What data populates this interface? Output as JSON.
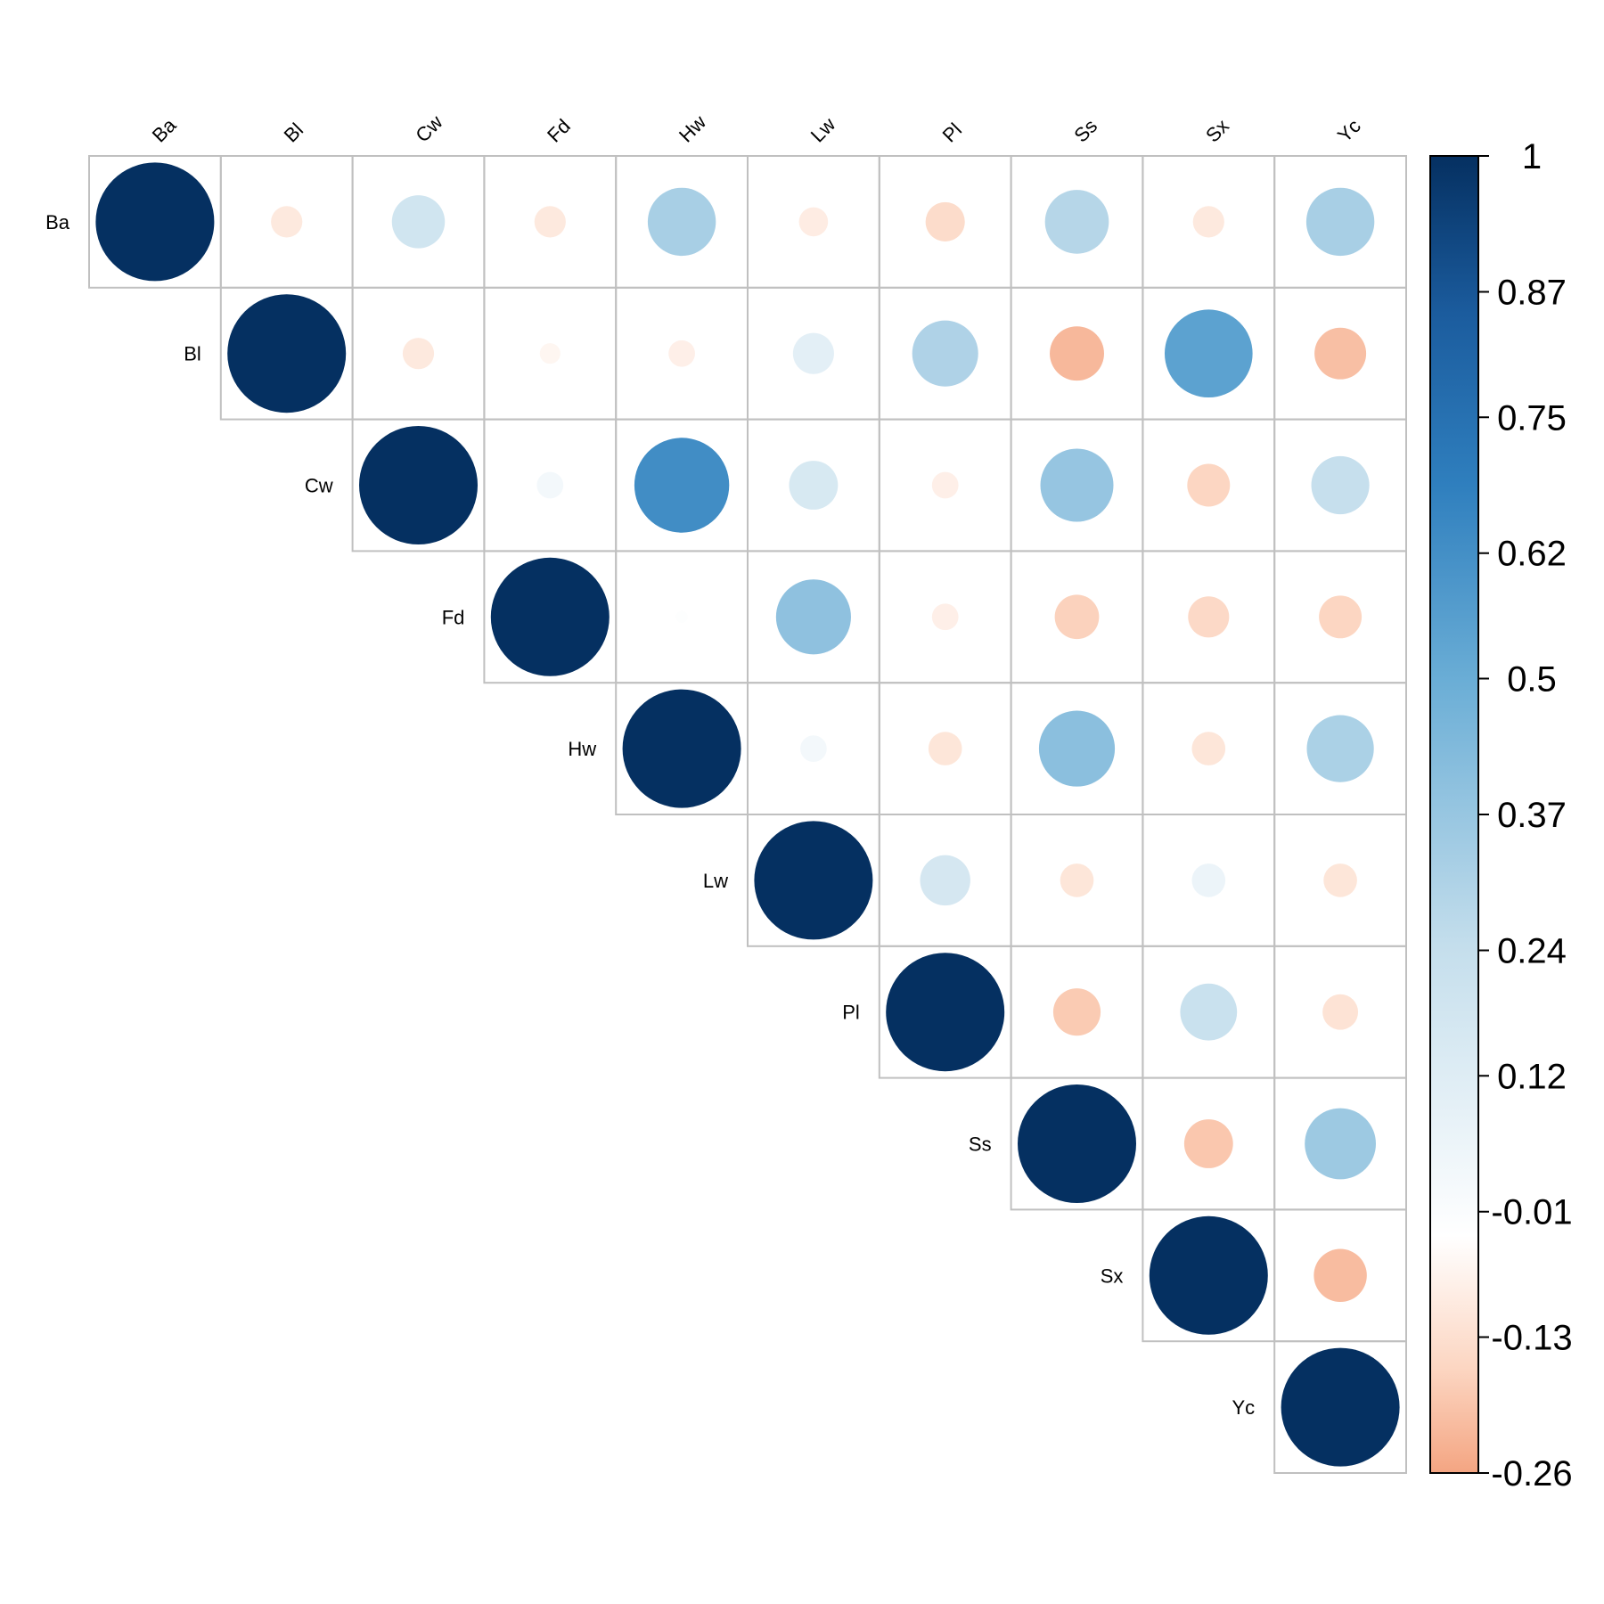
{
  "chart_data": {
    "type": "heatmap",
    "subtype": "correlation-matrix-upper-circles",
    "title": "",
    "variables": [
      "Ba",
      "Bl",
      "Cw",
      "Fd",
      "Hw",
      "Lw",
      "Pl",
      "Ss",
      "Sx",
      "Yc"
    ],
    "matrix": [
      [
        1.0,
        -0.07,
        0.2,
        -0.07,
        0.33,
        -0.06,
        -0.11,
        0.29,
        -0.07,
        0.33
      ],
      [
        null,
        1.0,
        -0.07,
        -0.03,
        -0.05,
        0.12,
        0.31,
        -0.21,
        0.55,
        -0.19
      ],
      [
        null,
        null,
        1.0,
        0.05,
        0.64,
        0.17,
        -0.05,
        0.38,
        -0.13,
        0.24
      ],
      [
        null,
        null,
        null,
        1.0,
        0.01,
        0.4,
        -0.05,
        -0.14,
        -0.12,
        -0.13
      ],
      [
        null,
        null,
        null,
        null,
        1.0,
        0.05,
        -0.08,
        0.41,
        -0.08,
        0.32
      ],
      [
        null,
        null,
        null,
        null,
        null,
        1.0,
        0.18,
        -0.08,
        0.08,
        -0.08
      ],
      [
        null,
        null,
        null,
        null,
        null,
        null,
        1.0,
        -0.16,
        0.23,
        -0.09
      ],
      [
        null,
        null,
        null,
        null,
        null,
        null,
        null,
        1.0,
        -0.17,
        0.36
      ],
      [
        null,
        null,
        null,
        null,
        null,
        null,
        null,
        null,
        1.0,
        -0.2
      ],
      [
        null,
        null,
        null,
        null,
        null,
        null,
        null,
        null,
        null,
        1.0
      ]
    ],
    "colorbar": {
      "range": [
        -0.26,
        1
      ],
      "tick_labels": [
        "1",
        "0.87",
        "0.75",
        "0.62",
        "0.5",
        "0.37",
        "0.24",
        "0.12",
        "-0.01",
        "-0.13",
        "-0.26"
      ],
      "tick_values": [
        1,
        0.87,
        0.75,
        0.62,
        0.5,
        0.37,
        0.24,
        0.12,
        -0.01,
        -0.13,
        -0.26
      ]
    },
    "colors": {
      "negative": "#F4A582",
      "zero": "#FFFFFF",
      "positive_mid": "#4393C3",
      "positive_max": "#053061",
      "grid": "#C0C0C0"
    }
  }
}
